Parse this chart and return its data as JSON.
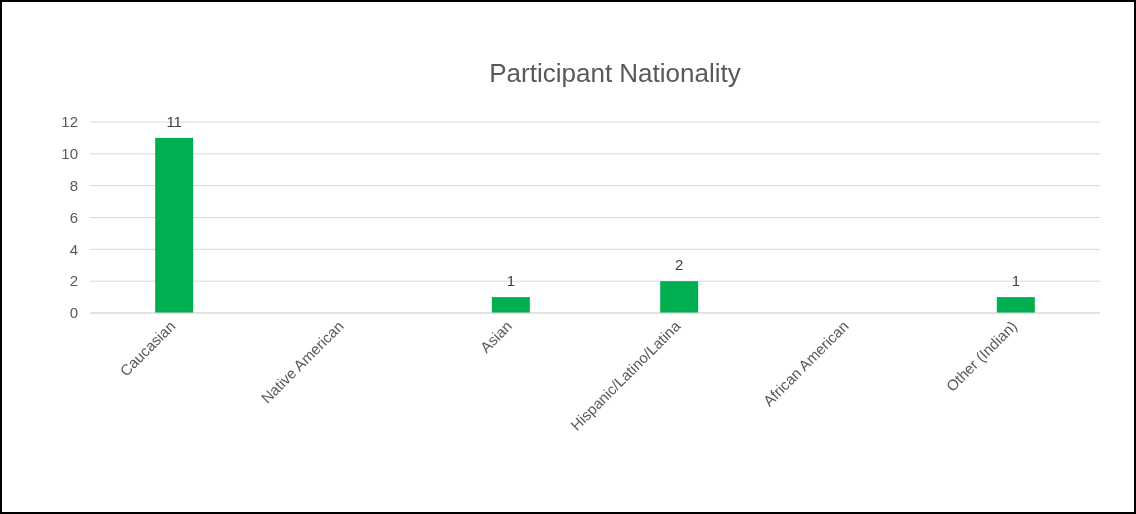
{
  "chart_data": {
    "type": "bar",
    "title": "Participant Nationality",
    "categories": [
      "Caucasian",
      "Native American",
      "Asian",
      "Hispanic/Latino/Latina",
      "African American",
      "Other (Indian)"
    ],
    "values": [
      11,
      0,
      1,
      2,
      0,
      1
    ],
    "value_labels": [
      "11",
      null,
      "1",
      "2",
      null,
      "1"
    ],
    "color": "#00b050",
    "ylim": [
      0,
      12
    ],
    "yticks": [
      0,
      2,
      4,
      6,
      8,
      10,
      12
    ],
    "grid": "y"
  }
}
